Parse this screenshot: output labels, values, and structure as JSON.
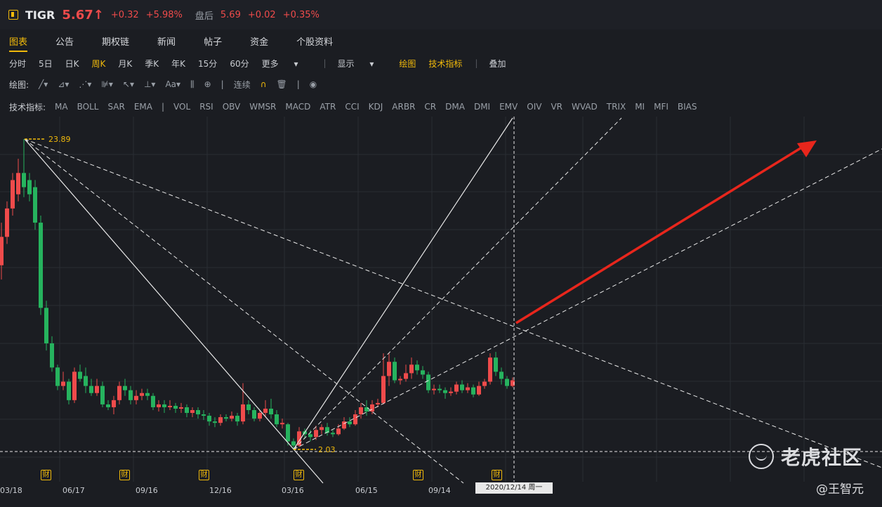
{
  "header": {
    "ticker": "TIGR",
    "price": "5.67",
    "arrow": "↑",
    "change": "+0.32",
    "change_pct": "+5.98%",
    "after_hours_label": "盘后",
    "after_price": "5.69",
    "after_change": "+0.02",
    "after_change_pct": "+0.35%"
  },
  "tabs": [
    "图表",
    "公告",
    "期权链",
    "新闻",
    "帖子",
    "资金",
    "个股资料"
  ],
  "periods": [
    "分时",
    "5日",
    "日K",
    "周K",
    "月K",
    "季K",
    "年K",
    "15分",
    "60分"
  ],
  "periods_more": "更多",
  "view_options": {
    "display": "显示",
    "draw": "绘图",
    "indicators": "技术指标",
    "overlay": "叠加"
  },
  "drawbar": {
    "label": "绘图:",
    "continuous": "连续"
  },
  "indicators": {
    "label": "技术指标:",
    "group1": [
      "MA",
      "BOLL",
      "SAR",
      "EMA"
    ],
    "group2": [
      "VOL",
      "RSI",
      "OBV",
      "WMSR",
      "MACD",
      "ATR",
      "CCI",
      "KDJ",
      "ARBR",
      "CR",
      "DMA",
      "DMI",
      "EMV",
      "OIV",
      "VR",
      "WVAD",
      "TRIX",
      "MI",
      "MFI",
      "BIAS"
    ]
  },
  "chart_data": {
    "type": "candlestick",
    "high_label": "23.89",
    "low_label": "2.03",
    "x_ticks": [
      "03/18",
      "06/17",
      "09/16",
      "12/16",
      "03/16",
      "06/15",
      "09/14"
    ],
    "crosshair_date": "2020/12/14 周一",
    "earnings_marker": "财",
    "colors": {
      "up": "#ef4b4b",
      "down": "#26b35e",
      "arrow": "#e8261c",
      "marker": "#f0b90b"
    }
  },
  "watermark": {
    "brand": "老虎社区",
    "author": "@王智元"
  }
}
